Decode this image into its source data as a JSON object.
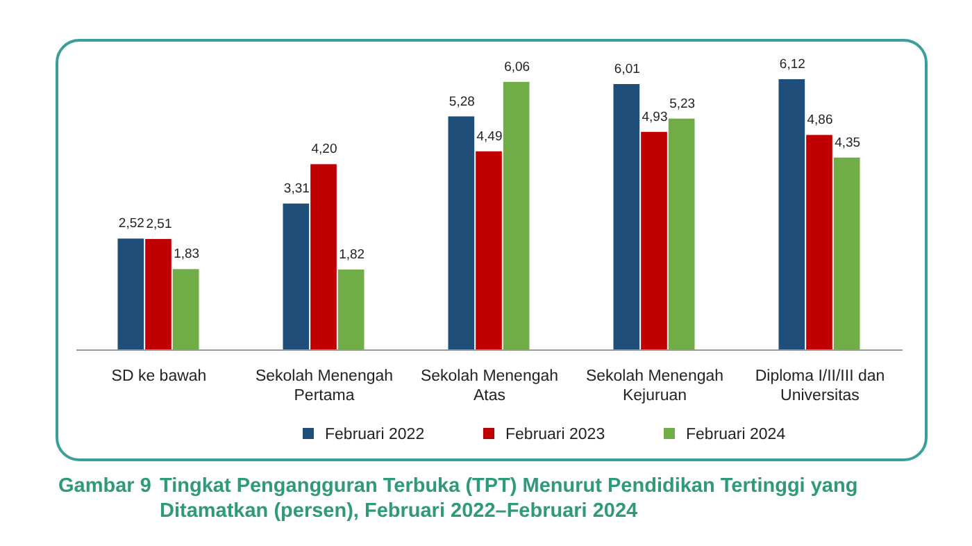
{
  "chart_data": {
    "type": "bar",
    "title": "Gambar 9    Tingkat Pengangguran Terbuka (TPT) Menurut Pendidikan Tertinggi yang Ditamatkan (persen), Februari 2022–Februari 2024",
    "categories": [
      "SD ke bawah",
      "Sekolah Menengah Pertama",
      "Sekolah Menengah Atas",
      "Sekolah Menengah Kejuruan",
      "Diploma I/II/III dan Universitas"
    ],
    "series": [
      {
        "name": "Februari 2022",
        "color": "#1f4e79",
        "values": [
          2.52,
          3.31,
          5.28,
          6.01,
          6.12
        ],
        "value_labels": [
          "2,52",
          "3,31",
          "5,28",
          "6,01",
          "6,12"
        ]
      },
      {
        "name": "Februari 2023",
        "color": "#c00000",
        "values": [
          2.51,
          4.2,
          4.49,
          4.93,
          4.86
        ],
        "value_labels": [
          "2,51",
          "4,20",
          "4,49",
          "4,93",
          "4,86"
        ]
      },
      {
        "name": "Februari 2024",
        "color": "#70ad47",
        "values": [
          1.83,
          1.82,
          6.06,
          5.23,
          4.35
        ],
        "value_labels": [
          "1,83",
          "1,82",
          "6,06",
          "5,23",
          "4,35"
        ]
      }
    ],
    "legend": "bottom",
    "grid": false
  }
}
